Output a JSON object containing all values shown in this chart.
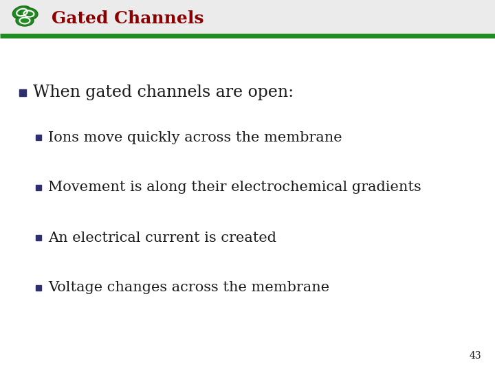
{
  "title": "Gated Channels",
  "title_color": "#8B0000",
  "title_fontsize": 18,
  "header_line_color": "#228B22",
  "header_bg_color": "#EBEBEB",
  "slide_background": "#FFFFFF",
  "bullet1_text": "When gated channels are open:",
  "bullet1_fontsize": 17,
  "sub_bullets": [
    "Ions move quickly across the membrane",
    "Movement is along their electrochemical gradients",
    "An electrical current is created",
    "Voltage changes across the membrane"
  ],
  "sub_bullet_fontsize": 15,
  "page_number": "43",
  "page_num_fontsize": 10,
  "text_color": "#1a1a1a",
  "bullet_square_color": "#2F2F6B",
  "logo_color_dark": "#1a6e1a",
  "logo_color_mid": "#228B22",
  "logo_color_light": "#2da82d"
}
